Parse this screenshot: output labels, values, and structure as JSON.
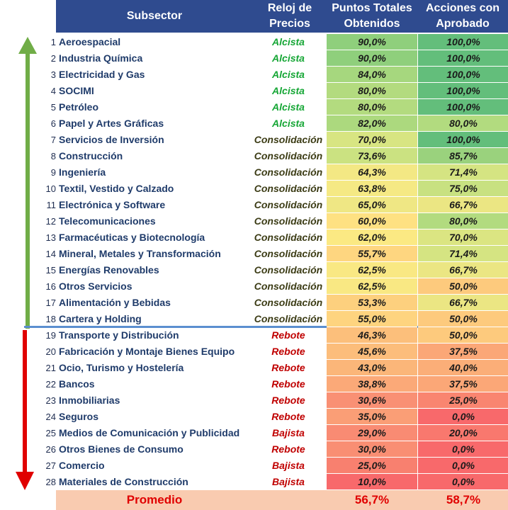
{
  "header": {
    "subsector": "Subsector",
    "clock_line1": "Reloj de",
    "clock_line2": "Precios",
    "points_line1": "Puntos Totales",
    "points_line2": "Obtenidos",
    "actions_line1": "Acciones con",
    "actions_line2": "Aprobado"
  },
  "clock_colors": {
    "Alcista": "#15a635",
    "Consolidación": "#3b3b14",
    "Rebote": "#c00000",
    "Bajista": "#c00000"
  },
  "rows": [
    {
      "n": "1",
      "name": "Aeroespacial",
      "clock": "Alcista",
      "pts": "90,0%",
      "acc": "100,0%",
      "pts_color": "#8fcf7c",
      "acc_color": "#63be7b"
    },
    {
      "n": "2",
      "name": "Industria Química",
      "clock": "Alcista",
      "pts": "90,0%",
      "acc": "100,0%",
      "pts_color": "#8fcf7c",
      "acc_color": "#63be7b"
    },
    {
      "n": "3",
      "name": "Electricidad y Gas",
      "clock": "Alcista",
      "pts": "84,0%",
      "acc": "100,0%",
      "pts_color": "#a6d77e",
      "acc_color": "#63be7b"
    },
    {
      "n": "4",
      "name": "SOCIMI",
      "clock": "Alcista",
      "pts": "80,0%",
      "acc": "100,0%",
      "pts_color": "#b3db7f",
      "acc_color": "#63be7b"
    },
    {
      "n": "5",
      "name": "Petróleo",
      "clock": "Alcista",
      "pts": "80,0%",
      "acc": "100,0%",
      "pts_color": "#b3db7f",
      "acc_color": "#63be7b"
    },
    {
      "n": "6",
      "name": "Papel y Artes Gráficas",
      "clock": "Alcista",
      "pts": "82,0%",
      "acc": "80,0%",
      "pts_color": "#acd97e",
      "acc_color": "#b2db7f"
    },
    {
      "n": "7",
      "name": "Servicios de Inversión",
      "clock": "Consolidación",
      "pts": "70,0%",
      "acc": "100,0%",
      "pts_color": "#d8e582",
      "acc_color": "#63be7b"
    },
    {
      "n": "8",
      "name": "Construcción",
      "clock": "Consolidación",
      "pts": "73,6%",
      "acc": "85,7%",
      "pts_color": "#cbe281",
      "acc_color": "#9ad27d"
    },
    {
      "n": "9",
      "name": "Ingeniería",
      "clock": "Consolidación",
      "pts": "64,3%",
      "acc": "71,4%",
      "pts_color": "#f3e884",
      "acc_color": "#d5e482"
    },
    {
      "n": "10",
      "name": "Textil, Vestido y Calzado",
      "clock": "Consolidación",
      "pts": "63,8%",
      "acc": "75,0%",
      "pts_color": "#f5e984",
      "acc_color": "#c8e181"
    },
    {
      "n": "11",
      "name": "Electrónica y Software",
      "clock": "Consolidación",
      "pts": "65,0%",
      "acc": "66,7%",
      "pts_color": "#efe784",
      "acc_color": "#ebe683"
    },
    {
      "n": "12",
      "name": "Telecomunicaciones",
      "clock": "Consolidación",
      "pts": "60,0%",
      "acc": "80,0%",
      "pts_color": "#fee182",
      "acc_color": "#b2db7f"
    },
    {
      "n": "13",
      "name": "Farmacéuticas y Biotecnología",
      "clock": "Consolidación",
      "pts": "62,0%",
      "acc": "70,0%",
      "pts_color": "#fbe983",
      "acc_color": "#dbe582"
    },
    {
      "n": "14",
      "name": "Mineral, Metales y Transformación",
      "clock": "Consolidación",
      "pts": "55,7%",
      "acc": "71,4%",
      "pts_color": "#fed680",
      "acc_color": "#d5e482"
    },
    {
      "n": "15",
      "name": "Energías Renovables",
      "clock": "Consolidación",
      "pts": "62,5%",
      "acc": "66,7%",
      "pts_color": "#f9e883",
      "acc_color": "#ebe683"
    },
    {
      "n": "16",
      "name": "Otros Servicios",
      "clock": "Consolidación",
      "pts": "62,5%",
      "acc": "50,0%",
      "pts_color": "#f9e883",
      "acc_color": "#fdca7d"
    },
    {
      "n": "17",
      "name": "Alimentación y Bebidas",
      "clock": "Consolidación",
      "pts": "53,3%",
      "acc": "66,7%",
      "pts_color": "#fdd07e",
      "acc_color": "#ebe683"
    },
    {
      "n": "18",
      "name": "Cartera y Holding",
      "clock": "Consolidación",
      "pts": "55,0%",
      "acc": "50,0%",
      "pts_color": "#fed47f",
      "acc_color": "#fdca7d"
    },
    {
      "n": "19",
      "name": "Transporte y Distribución",
      "clock": "Rebote",
      "pts": "46,3%",
      "acc": "50,0%",
      "pts_color": "#fcbf7b",
      "acc_color": "#fdca7d"
    },
    {
      "n": "20",
      "name": "Fabricación y Montaje Bienes Equipo",
      "clock": "Rebote",
      "pts": "45,6%",
      "acc": "37,5%",
      "pts_color": "#fcbd7b",
      "acc_color": "#fba777"
    },
    {
      "n": "21",
      "name": "Ocio, Turismo y Hostelería",
      "clock": "Rebote",
      "pts": "43,0%",
      "acc": "40,0%",
      "pts_color": "#fbb679",
      "acc_color": "#fbae78"
    },
    {
      "n": "22",
      "name": "Bancos",
      "clock": "Rebote",
      "pts": "38,8%",
      "acc": "37,5%",
      "pts_color": "#fba978",
      "acc_color": "#fba777"
    },
    {
      "n": "23",
      "name": "Inmobiliarias",
      "clock": "Rebote",
      "pts": "30,6%",
      "acc": "25,0%",
      "pts_color": "#f99074",
      "acc_color": "#f98570"
    },
    {
      "n": "24",
      "name": "Seguros",
      "clock": "Rebote",
      "pts": "35,0%",
      "acc": "0,0%",
      "pts_color": "#fa9e76",
      "acc_color": "#f8696b"
    },
    {
      "n": "25",
      "name": "Medios de Comunicación y Publicidad",
      "clock": "Bajista",
      "pts": "29,0%",
      "acc": "20,0%",
      "pts_color": "#f98b73",
      "acc_color": "#f9786e"
    },
    {
      "n": "26",
      "name": "Otros Bienes de Consumo",
      "clock": "Rebote",
      "pts": "30,0%",
      "acc": "0,0%",
      "pts_color": "#f98e73",
      "acc_color": "#f8696b"
    },
    {
      "n": "27",
      "name": "Comercio",
      "clock": "Bajista",
      "pts": "25,0%",
      "acc": "0,0%",
      "pts_color": "#f8806f",
      "acc_color": "#f8696b"
    },
    {
      "n": "28",
      "name": "Materiales de Construcción",
      "clock": "Bajista",
      "pts": "10,0%",
      "acc": "0,0%",
      "pts_color": "#f8696b",
      "acc_color": "#f8696b"
    }
  ],
  "average": {
    "label": "Promedio",
    "pts": "56,7%",
    "acc": "58,7%"
  },
  "arrows": {
    "up_color": "#70ad47",
    "down_color": "#e00000",
    "divider_color": "#5b8fd0"
  }
}
